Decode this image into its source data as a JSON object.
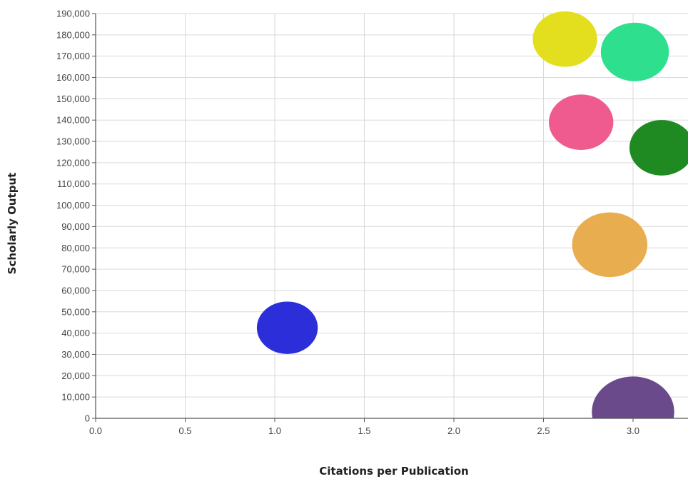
{
  "chart_data": {
    "type": "scatter",
    "title": "",
    "xlabel": "Citations per Publication",
    "ylabel": "Scholarly Output",
    "xlim": [
      0,
      3.3
    ],
    "ylim": [
      0,
      190000
    ],
    "x_ticks": [
      0,
      0.5,
      1.0,
      1.5,
      2.0,
      2.5,
      3.0
    ],
    "x_tick_labels": [
      "0.0",
      "0.5",
      "1.0",
      "1.5",
      "2.0",
      "2.5",
      "3.0"
    ],
    "y_ticks": [
      0,
      10000,
      20000,
      30000,
      40000,
      50000,
      60000,
      70000,
      80000,
      90000,
      100000,
      110000,
      120000,
      130000,
      140000,
      150000,
      160000,
      170000,
      180000,
      190000
    ],
    "y_tick_labels": [
      "0",
      "10,000",
      "20,000",
      "30,000",
      "40,000",
      "50,000",
      "60,000",
      "70,000",
      "80,000",
      "90,000",
      "100,000",
      "110,000",
      "120,000",
      "130,000",
      "140,000",
      "150,000",
      "160,000",
      "170,000",
      "180,000",
      "190,000"
    ],
    "grid": true,
    "legend": "none",
    "points": [
      {
        "x": 2.62,
        "y": 178000,
        "r": 0.18,
        "color": "#e3df1f"
      },
      {
        "x": 3.01,
        "y": 172000,
        "r": 0.19,
        "color": "#2ee08e"
      },
      {
        "x": 2.71,
        "y": 139000,
        "r": 0.18,
        "color": "#ef5b8f"
      },
      {
        "x": 3.16,
        "y": 127000,
        "r": 0.18,
        "color": "#1f8a22"
      },
      {
        "x": 2.87,
        "y": 81500,
        "r": 0.21,
        "color": "#e8ad4f"
      },
      {
        "x": 1.07,
        "y": 42500,
        "r": 0.17,
        "color": "#2b2ed9"
      },
      {
        "x": 3.0,
        "y": 3000,
        "r": 0.23,
        "color": "#6a4a8a"
      }
    ]
  }
}
